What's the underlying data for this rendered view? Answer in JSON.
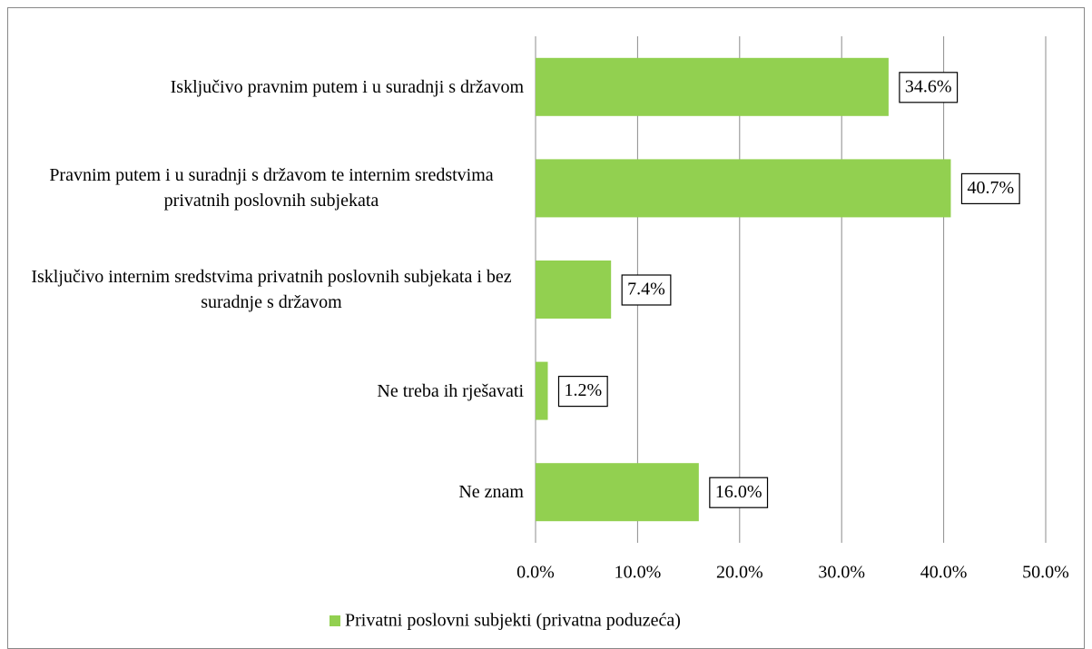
{
  "chart_data": {
    "type": "bar",
    "orientation": "horizontal",
    "categories": [
      "Isključivo pravnim putem i u suradnji s državom",
      "Pravnim putem i u suradnji s državom te internim sredstvima privatnih poslovnih subjekata",
      "Isključivo internim sredstvima privatnih poslovnih subjekata i bez suradnje s državom",
      "Ne treba ih rješavati",
      "Ne znam"
    ],
    "series": [
      {
        "name": "Privatni poslovni subjekti (privatna poduzeća)",
        "color": "#92d050",
        "values": [
          34.6,
          40.7,
          7.4,
          1.2,
          16.0
        ],
        "value_labels": [
          "34.6%",
          "40.7%",
          "7.4%",
          "1.2%",
          "16.0%"
        ]
      }
    ],
    "xlim": [
      0,
      50
    ],
    "xticks": [
      {
        "value": 0,
        "label": "0.0%"
      },
      {
        "value": 10,
        "label": "10.0%"
      },
      {
        "value": 20,
        "label": "20.0%"
      },
      {
        "value": 30,
        "label": "30.0%"
      },
      {
        "value": 40,
        "label": "40.0%"
      },
      {
        "value": 50,
        "label": "50.0%"
      }
    ],
    "grid": true,
    "legend": "bottom"
  }
}
